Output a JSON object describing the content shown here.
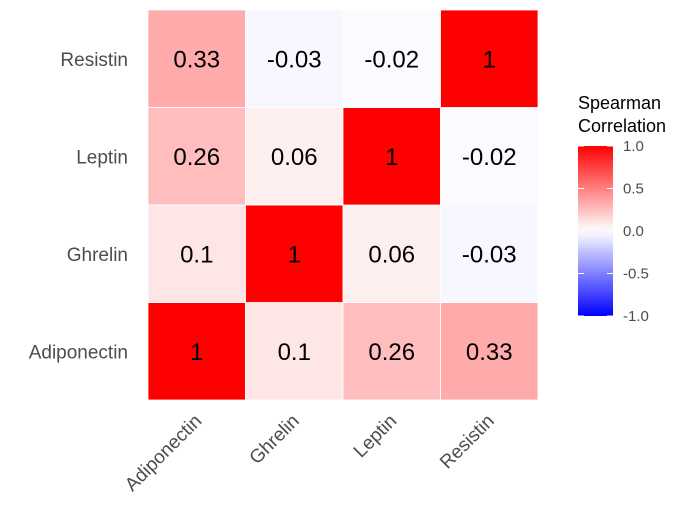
{
  "chart_data": {
    "type": "heatmap",
    "title": "",
    "xlabel": "",
    "ylabel": "",
    "x_categories": [
      "Adiponectin",
      "Ghrelin",
      "Leptin",
      "Resistin"
    ],
    "y_categories": [
      "Adiponectin",
      "Ghrelin",
      "Leptin",
      "Resistin"
    ],
    "matrix": [
      [
        1,
        0.1,
        0.26,
        0.33
      ],
      [
        0.1,
        1,
        0.06,
        -0.03
      ],
      [
        0.26,
        0.06,
        1,
        -0.02
      ],
      [
        0.33,
        -0.03,
        -0.02,
        1
      ]
    ],
    "cell_labels": [
      [
        "1",
        "0.1",
        "0.26",
        "0.33"
      ],
      [
        "0.1",
        "1",
        "0.06",
        "-0.03"
      ],
      [
        "0.26",
        "0.06",
        "1",
        "-0.02"
      ],
      [
        "0.33",
        "-0.03",
        "-0.02",
        "1"
      ]
    ],
    "value_range": [
      -1,
      1
    ],
    "colors": {
      "low": "#0000FF",
      "mid": "#FFFFFF",
      "high": "#FF0000",
      "grid": "#EBEBEB"
    },
    "legend": {
      "title_lines": [
        "Spearman",
        "Correlation"
      ],
      "breaks": [
        1.0,
        0.5,
        0.0,
        -0.5,
        -1.0
      ],
      "break_labels": [
        "1.0",
        "0.5",
        "0.0",
        "-0.5",
        "-1.0"
      ],
      "position": "right"
    },
    "grid": true
  }
}
